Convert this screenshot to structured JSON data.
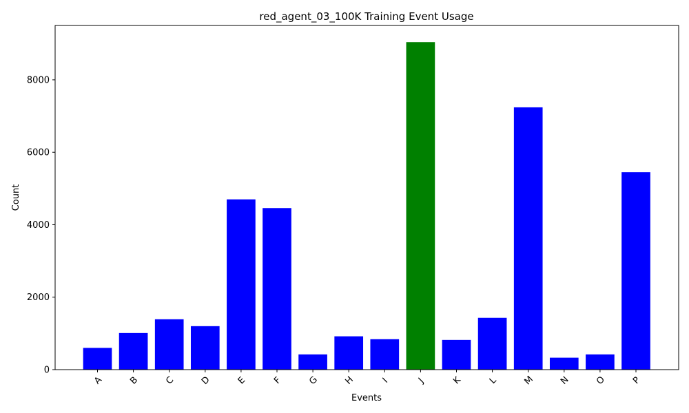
{
  "chart_data": {
    "type": "bar",
    "title": "red_agent_03_100K Training Event Usage",
    "xlabel": "Events",
    "ylabel": "Count",
    "categories": [
      "A",
      "B",
      "C",
      "D",
      "E",
      "F",
      "G",
      "H",
      "I",
      "J",
      "K",
      "L",
      "M",
      "N",
      "O",
      "P"
    ],
    "values": [
      600,
      1010,
      1390,
      1200,
      4700,
      4460,
      420,
      920,
      840,
      9040,
      820,
      1430,
      7240,
      330,
      420,
      5450
    ],
    "colors": [
      "#0000ff",
      "#0000ff",
      "#0000ff",
      "#0000ff",
      "#0000ff",
      "#0000ff",
      "#0000ff",
      "#0000ff",
      "#0000ff",
      "#008000",
      "#0000ff",
      "#0000ff",
      "#0000ff",
      "#0000ff",
      "#0000ff",
      "#0000ff"
    ],
    "ylim": [
      0,
      9500
    ],
    "yticks": [
      0,
      2000,
      4000,
      6000,
      8000
    ],
    "grid": false,
    "legend": "none"
  }
}
